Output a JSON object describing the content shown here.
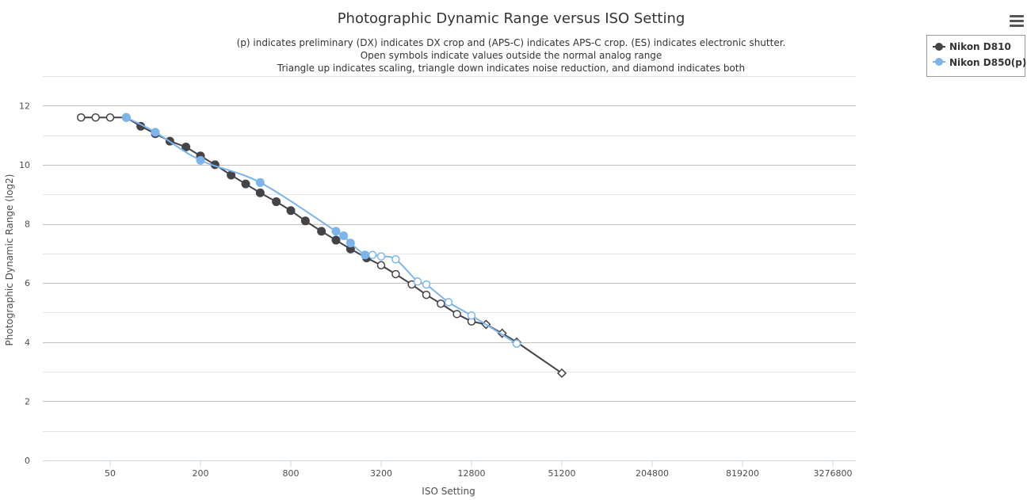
{
  "chart_data": {
    "type": "line",
    "title": "Photographic Dynamic Range versus ISO Setting",
    "subtitle_lines": [
      "(p) indicates preliminary (DX) indicates DX crop and (APS-C) indicates APS-C crop. (ES) indicates electronic shutter.",
      "Open symbols indicate values outside the normal analog range",
      "Triangle up indicates scaling, triangle down indicates noise reduction, and diamond indicates both"
    ],
    "xlabel": "ISO Setting",
    "ylabel": "Photographic Dynamic Range (log2)",
    "x_scale": "log2",
    "x_ticks": [
      50,
      200,
      800,
      3200,
      12800,
      51200,
      204800,
      819200,
      3276800
    ],
    "y_ticks": [
      0,
      2,
      4,
      6,
      8,
      10,
      12
    ],
    "ylim": [
      0,
      13
    ],
    "legend_position": "top-right",
    "menu_icon": "hamburger-menu-icon",
    "series": [
      {
        "name": "Nikon D810",
        "color": "#434348",
        "points": [
          {
            "x": 32,
            "y": 11.6,
            "marker": "open-circle"
          },
          {
            "x": 40,
            "y": 11.6,
            "marker": "open-circle"
          },
          {
            "x": 50,
            "y": 11.6,
            "marker": "open-circle"
          },
          {
            "x": 64,
            "y": 11.6,
            "marker": "circle"
          },
          {
            "x": 80,
            "y": 11.3,
            "marker": "circle"
          },
          {
            "x": 100,
            "y": 11.05,
            "marker": "circle"
          },
          {
            "x": 125,
            "y": 10.8,
            "marker": "circle"
          },
          {
            "x": 160,
            "y": 10.6,
            "marker": "circle"
          },
          {
            "x": 200,
            "y": 10.3,
            "marker": "circle"
          },
          {
            "x": 250,
            "y": 10.0,
            "marker": "circle"
          },
          {
            "x": 320,
            "y": 9.65,
            "marker": "circle"
          },
          {
            "x": 400,
            "y": 9.35,
            "marker": "circle"
          },
          {
            "x": 500,
            "y": 9.05,
            "marker": "circle"
          },
          {
            "x": 640,
            "y": 8.75,
            "marker": "circle"
          },
          {
            "x": 800,
            "y": 8.45,
            "marker": "circle"
          },
          {
            "x": 1000,
            "y": 8.1,
            "marker": "circle"
          },
          {
            "x": 1280,
            "y": 7.75,
            "marker": "circle"
          },
          {
            "x": 1600,
            "y": 7.45,
            "marker": "circle"
          },
          {
            "x": 2000,
            "y": 7.15,
            "marker": "circle"
          },
          {
            "x": 2560,
            "y": 6.85,
            "marker": "circle"
          },
          {
            "x": 3200,
            "y": 6.6,
            "marker": "open-circle"
          },
          {
            "x": 4000,
            "y": 6.3,
            "marker": "open-circle"
          },
          {
            "x": 5120,
            "y": 5.95,
            "marker": "open-circle"
          },
          {
            "x": 6400,
            "y": 5.6,
            "marker": "open-circle"
          },
          {
            "x": 8000,
            "y": 5.3,
            "marker": "open-circle"
          },
          {
            "x": 10240,
            "y": 4.95,
            "marker": "open-circle"
          },
          {
            "x": 12800,
            "y": 4.7,
            "marker": "open-circle"
          },
          {
            "x": 16000,
            "y": 4.6,
            "marker": "open-diamond"
          },
          {
            "x": 20480,
            "y": 4.3,
            "marker": "open-diamond"
          },
          {
            "x": 25600,
            "y": 4.0,
            "marker": "open-diamond"
          },
          {
            "x": 51200,
            "y": 2.95,
            "marker": "open-diamond"
          }
        ]
      },
      {
        "name": "Nikon D850(p)",
        "color": "#7cb5ec",
        "points": [
          {
            "x": 64,
            "y": 11.6,
            "marker": "circle"
          },
          {
            "x": 100,
            "y": 11.1,
            "marker": "circle"
          },
          {
            "x": 200,
            "y": 10.15,
            "marker": "circle"
          },
          {
            "x": 500,
            "y": 9.4,
            "marker": "circle"
          },
          {
            "x": 1600,
            "y": 7.75,
            "marker": "circle"
          },
          {
            "x": 1800,
            "y": 7.6,
            "marker": "circle"
          },
          {
            "x": 2000,
            "y": 7.35,
            "marker": "circle"
          },
          {
            "x": 2500,
            "y": 6.95,
            "marker": "circle"
          },
          {
            "x": 2800,
            "y": 6.95,
            "marker": "open-circle"
          },
          {
            "x": 3200,
            "y": 6.9,
            "marker": "open-circle"
          },
          {
            "x": 4000,
            "y": 6.8,
            "marker": "open-circle"
          },
          {
            "x": 5600,
            "y": 6.05,
            "marker": "open-circle"
          },
          {
            "x": 6400,
            "y": 5.95,
            "marker": "open-circle"
          },
          {
            "x": 9000,
            "y": 5.35,
            "marker": "open-circle"
          },
          {
            "x": 12800,
            "y": 4.9,
            "marker": "open-circle"
          },
          {
            "x": 25600,
            "y": 3.95,
            "marker": "open-circle"
          }
        ]
      }
    ]
  }
}
